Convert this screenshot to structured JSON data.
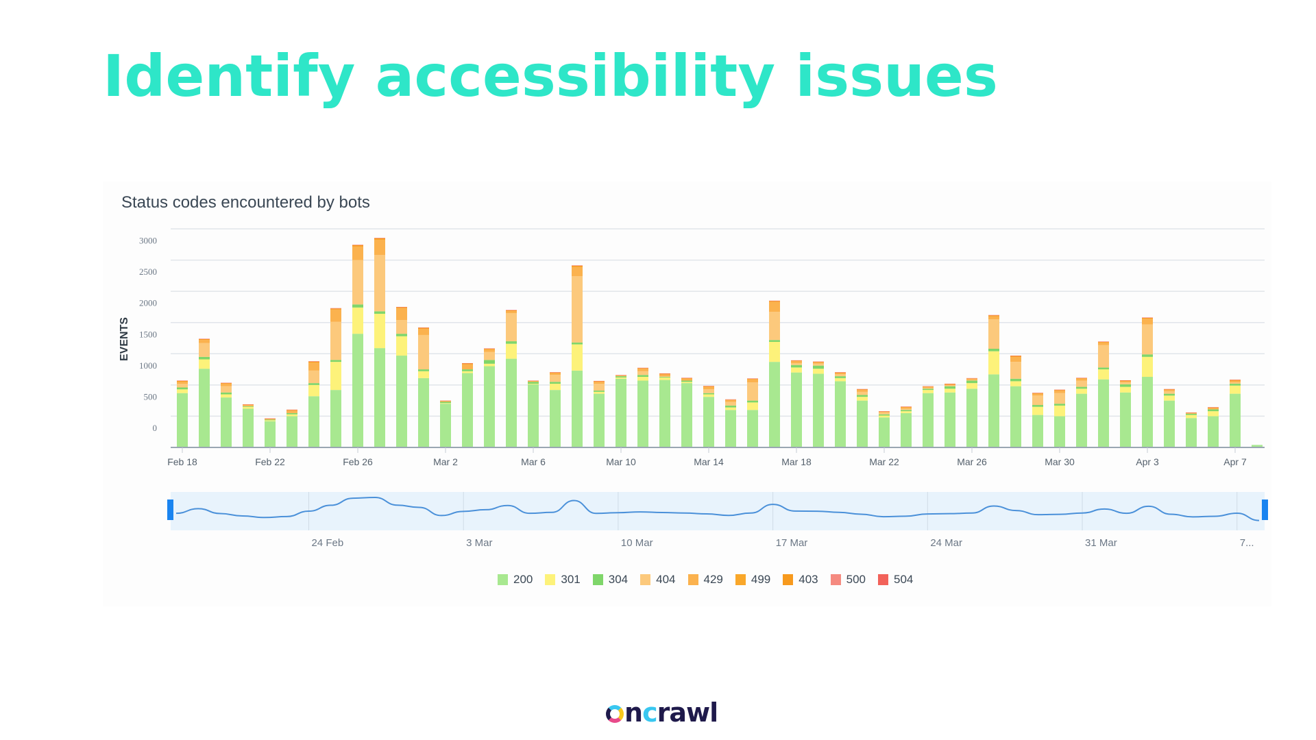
{
  "slide": {
    "title": "Identify accessibility issues",
    "logo_text": "oncrawl"
  },
  "chart_data": {
    "type": "bar",
    "stacked": true,
    "title": "Status codes encountered by bots",
    "xlabel": "",
    "ylabel": "EVENTS",
    "ylim": [
      0,
      3500
    ],
    "yticks": [
      0,
      500,
      1000,
      1500,
      2000,
      2500,
      3000
    ],
    "grid": true,
    "legend_position": "bottom-center",
    "x_tick_labels": [
      "Feb 18",
      "Feb 22",
      "Feb 26",
      "Mar 2",
      "Mar 6",
      "Mar 10",
      "Mar 14",
      "Mar 18",
      "Mar 22",
      "Mar 26",
      "Mar 30",
      "Apr 3",
      "Apr 7"
    ],
    "categories": [
      "Feb 18",
      "Feb 19",
      "Feb 20",
      "Feb 21",
      "Feb 22",
      "Feb 23",
      "Feb 24",
      "Feb 25",
      "Feb 26",
      "Feb 27",
      "Feb 28",
      "Mar 1",
      "Mar 2",
      "Mar 3",
      "Mar 4",
      "Mar 5",
      "Mar 6",
      "Mar 7",
      "Mar 8",
      "Mar 9",
      "Mar 10",
      "Mar 11",
      "Mar 12",
      "Mar 13",
      "Mar 14",
      "Mar 15",
      "Mar 16",
      "Mar 17",
      "Mar 18",
      "Mar 19",
      "Mar 20",
      "Mar 21",
      "Mar 22",
      "Mar 23",
      "Mar 24",
      "Mar 25",
      "Mar 26",
      "Mar 27",
      "Mar 28",
      "Mar 29",
      "Mar 30",
      "Mar 31",
      "Apr 1",
      "Apr 2",
      "Apr 3",
      "Apr 4",
      "Apr 5",
      "Apr 6",
      "Apr 7",
      "Apr 8"
    ],
    "series": [
      {
        "name": "200",
        "color": "#a8e890",
        "values": [
          870,
          1260,
          800,
          620,
          420,
          500,
          820,
          920,
          1820,
          1590,
          1470,
          1110,
          700,
          1190,
          1300,
          1420,
          1010,
          920,
          1230,
          860,
          1100,
          1070,
          1080,
          1030,
          810,
          600,
          600,
          1370,
          1200,
          1180,
          1060,
          750,
          480,
          550,
          870,
          880,
          940,
          1170,
          980,
          520,
          500,
          860,
          1090,
          880,
          1130,
          750,
          470,
          500,
          860,
          40
        ]
      },
      {
        "name": "301",
        "color": "#fdf27a",
        "values": [
          60,
          150,
          50,
          30,
          15,
          30,
          180,
          450,
          420,
          550,
          310,
          110,
          10,
          30,
          40,
          240,
          10,
          100,
          420,
          30,
          20,
          60,
          40,
          20,
          40,
          40,
          120,
          320,
          80,
          80,
          50,
          60,
          30,
          30,
          50,
          60,
          90,
          370,
          80,
          130,
          170,
          80,
          160,
          90,
          320,
          80,
          50,
          80,
          130,
          0
        ]
      },
      {
        "name": "304",
        "color": "#7fd66a",
        "values": [
          30,
          40,
          30,
          10,
          10,
          20,
          30,
          30,
          50,
          40,
          40,
          30,
          20,
          30,
          60,
          40,
          30,
          30,
          30,
          20,
          20,
          30,
          10,
          20,
          20,
          30,
          30,
          30,
          40,
          50,
          30,
          30,
          20,
          20,
          20,
          40,
          40,
          40,
          40,
          30,
          30,
          30,
          30,
          40,
          40,
          30,
          20,
          30,
          30,
          0
        ]
      },
      {
        "name": "404",
        "color": "#fcc97c",
        "values": [
          60,
          220,
          100,
          0,
          0,
          0,
          200,
          610,
          710,
          900,
          220,
          550,
          0,
          0,
          130,
          450,
          0,
          110,
          1060,
          110,
          0,
          60,
          10,
          0,
          60,
          60,
          290,
          450,
          30,
          30,
          30,
          50,
          30,
          20,
          10,
          10,
          10,
          470,
          270,
          150,
          170,
          100,
          360,
          30,
          480,
          40,
          0,
          0,
          20,
          0
        ]
      },
      {
        "name": "429",
        "color": "#fbb24e",
        "values": [
          30,
          50,
          40,
          20,
          10,
          40,
          130,
          200,
          220,
          250,
          190,
          100,
          10,
          80,
          40,
          30,
          10,
          30,
          150,
          30,
          10,
          40,
          30,
          30,
          40,
          30,
          50,
          160,
          30,
          20,
          20,
          30,
          10,
          20,
          20,
          20,
          20,
          50,
          80,
          30,
          40,
          30,
          40,
          20,
          90,
          20,
          10,
          20,
          30,
          0
        ]
      },
      {
        "name": "499",
        "color": "#f9a72a",
        "values": [
          0,
          0,
          0,
          0,
          0,
          0,
          0,
          0,
          0,
          0,
          0,
          0,
          0,
          0,
          0,
          0,
          0,
          0,
          0,
          0,
          0,
          0,
          0,
          0,
          0,
          0,
          0,
          0,
          0,
          0,
          0,
          0,
          0,
          0,
          0,
          0,
          0,
          0,
          0,
          0,
          0,
          0,
          0,
          0,
          0,
          0,
          0,
          0,
          0,
          0
        ]
      },
      {
        "name": "403",
        "color": "#f79a1e",
        "values": [
          15,
          15,
          10,
          5,
          5,
          10,
          15,
          15,
          20,
          20,
          15,
          15,
          5,
          15,
          10,
          15,
          5,
          10,
          20,
          10,
          5,
          10,
          10,
          10,
          10,
          5,
          10,
          15,
          10,
          10,
          10,
          10,
          5,
          10,
          5,
          5,
          5,
          15,
          15,
          10,
          10,
          10,
          10,
          10,
          15,
          10,
          5,
          10,
          10,
          0
        ]
      },
      {
        "name": "500",
        "color": "#f58a80",
        "values": [
          0,
          0,
          0,
          0,
          0,
          0,
          0,
          0,
          0,
          0,
          0,
          0,
          0,
          0,
          0,
          0,
          0,
          0,
          0,
          0,
          0,
          0,
          0,
          0,
          0,
          0,
          0,
          0,
          0,
          0,
          0,
          0,
          0,
          0,
          0,
          0,
          0,
          0,
          0,
          0,
          0,
          0,
          0,
          0,
          0,
          0,
          0,
          0,
          0,
          0
        ]
      },
      {
        "name": "504",
        "color": "#f2625a",
        "values": [
          5,
          5,
          5,
          5,
          5,
          5,
          5,
          5,
          5,
          5,
          5,
          5,
          5,
          5,
          5,
          5,
          5,
          5,
          5,
          5,
          5,
          5,
          5,
          5,
          5,
          5,
          5,
          5,
          5,
          5,
          5,
          5,
          5,
          5,
          5,
          5,
          5,
          5,
          5,
          5,
          5,
          5,
          5,
          5,
          5,
          5,
          5,
          5,
          5,
          0
        ]
      }
    ],
    "navigator": {
      "tick_labels": [
        "24 Feb",
        "3 Mar",
        "10 Mar",
        "17 Mar",
        "24 Mar",
        "31 Mar",
        "7..."
      ],
      "line_color": "#4a90d9",
      "handle_color": "#1a84f0",
      "background": "#e8f3fc"
    }
  }
}
